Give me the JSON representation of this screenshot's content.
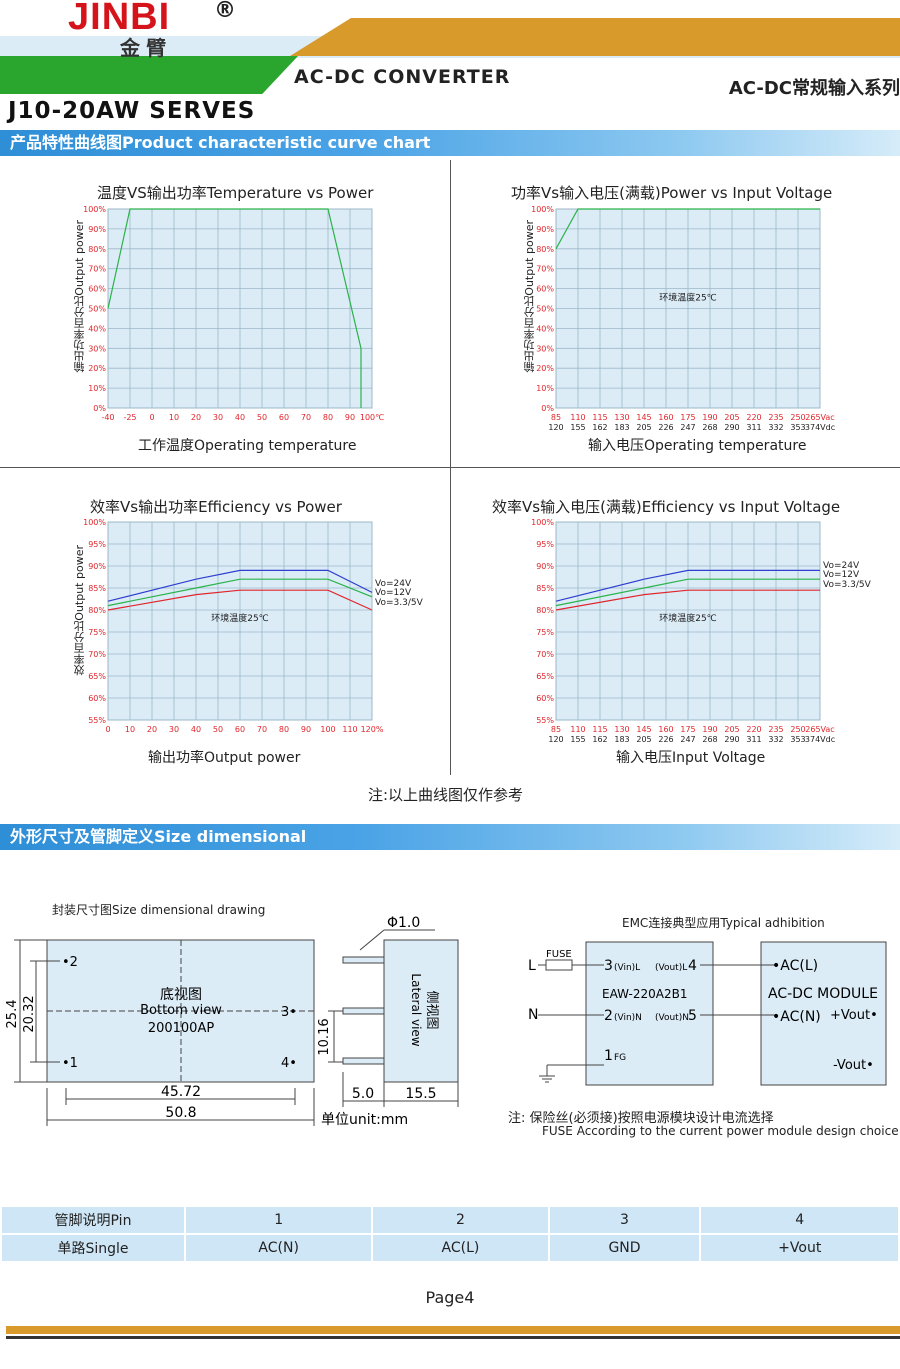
{
  "header": {
    "logo_text": "JINBI",
    "logo_reg": "®",
    "logo_cn": "金臂",
    "title": "AC-DC CONVERTER",
    "right_title": "AC-DC常规输入系列",
    "series": "J10-20AW SERVES",
    "colors": {
      "green": "#2aa52d",
      "gold": "#d79a2b",
      "lightblue": "#dcecf7"
    }
  },
  "section1": {
    "label": "产品特性曲线图Product characteristic curve chart"
  },
  "chart_data": [
    {
      "type": "line",
      "title": "温度VS输出功率Temperature vs Power",
      "xlabel": "工作温度Operating  temperature",
      "ylabel": "输出功率百分比Output power",
      "x_ticks": [
        "-40",
        "-25",
        "0",
        "10",
        "20",
        "30",
        "40",
        "50",
        "60",
        "70",
        "80",
        "90",
        "100℃"
      ],
      "y_ticks": [
        "0%",
        "10%",
        "20%",
        "30%",
        "40%",
        "50%",
        "60%",
        "70%",
        "80%",
        "90%",
        "100%"
      ],
      "xlim": [
        -40,
        100
      ],
      "ylim": [
        0,
        100
      ],
      "series": [
        {
          "color": "#2ab34a",
          "x": [
            "-40",
            "-25",
            "80",
            "95",
            "95"
          ],
          "y": [
            50,
            100,
            100,
            30,
            0
          ]
        }
      ],
      "grid": true
    },
    {
      "type": "line",
      "title": "功率Vs输入电压(满载)Power vs Input Voltage",
      "xlabel": "输入电压Operating  temperature",
      "ylabel": "输出功率百分比Output power",
      "annotation": "环境温度25℃",
      "x_ticks_top": [
        "85",
        "110",
        "115",
        "130",
        "145",
        "160",
        "175",
        "190",
        "205",
        "220",
        "235",
        "250",
        "265Vac"
      ],
      "x_ticks_bottom": [
        "120",
        "155",
        "162",
        "183",
        "205",
        "226",
        "247",
        "268",
        "290",
        "311",
        "332",
        "353",
        "374Vdc"
      ],
      "y_ticks": [
        "0%",
        "10%",
        "20%",
        "30%",
        "40%",
        "50%",
        "60%",
        "70%",
        "80%",
        "90%",
        "100%"
      ],
      "xlim": [
        85,
        265
      ],
      "ylim": [
        0,
        100
      ],
      "series": [
        {
          "color": "#2ab34a",
          "x": [
            85,
            110,
            265
          ],
          "y": [
            80,
            100,
            100
          ]
        }
      ],
      "grid": true
    },
    {
      "type": "line",
      "title": "效率Vs输出功率Efficiency vs Power",
      "xlabel": "输出功率Output power",
      "ylabel": "效率百分比Output power",
      "annotation": "环境温度25℃",
      "x_ticks": [
        "0",
        "10",
        "20",
        "30",
        "40",
        "50",
        "60",
        "70",
        "80",
        "90",
        "100",
        "110",
        "120%"
      ],
      "y_ticks": [
        "55%",
        "60%",
        "65%",
        "70%",
        "75%",
        "80%",
        "85%",
        "90%",
        "95%",
        "100%"
      ],
      "xlim": [
        0,
        120
      ],
      "ylim": [
        55,
        100
      ],
      "series": [
        {
          "name": "Vo=24V",
          "color": "#2f3fd0",
          "x": [
            0,
            40,
            60,
            100,
            120
          ],
          "y": [
            82,
            87,
            89,
            89,
            84
          ]
        },
        {
          "name": "Vo=12V",
          "color": "#2ab34a",
          "x": [
            0,
            40,
            60,
            100,
            120
          ],
          "y": [
            81,
            85,
            87,
            87,
            83
          ]
        },
        {
          "name": "Vo=3.3/5V",
          "color": "#e0262b",
          "x": [
            0,
            40,
            60,
            100,
            120
          ],
          "y": [
            80,
            83.5,
            84.5,
            84.5,
            80
          ]
        }
      ],
      "legend": "right",
      "grid": true
    },
    {
      "type": "line",
      "title": "效率Vs输入电压(满载)Efficiency vs Input Voltage",
      "xlabel": "输入电压Input Voltage",
      "annotation": "环境温度25℃",
      "x_ticks_top": [
        "85",
        "110",
        "115",
        "130",
        "145",
        "160",
        "175",
        "190",
        "205",
        "220",
        "235",
        "250",
        "265Vac"
      ],
      "x_ticks_bottom": [
        "120",
        "155",
        "162",
        "183",
        "205",
        "226",
        "247",
        "268",
        "290",
        "311",
        "332",
        "353",
        "374Vdc"
      ],
      "y_ticks": [
        "55%",
        "60%",
        "65%",
        "70%",
        "75%",
        "80%",
        "85%",
        "90%",
        "95%",
        "100%"
      ],
      "xlim": [
        85,
        265
      ],
      "ylim": [
        55,
        100
      ],
      "series": [
        {
          "name": "Vo=24V",
          "color": "#2f3fd0",
          "x": [
            85,
            145,
            175,
            265
          ],
          "y": [
            82,
            87,
            89,
            89
          ]
        },
        {
          "name": "Vo=12V",
          "color": "#2ab34a",
          "x": [
            85,
            145,
            175,
            265
          ],
          "y": [
            81,
            85,
            87,
            87
          ]
        },
        {
          "name": "Vo=3.3/5V",
          "color": "#e0262b",
          "x": [
            85,
            145,
            175,
            265
          ],
          "y": [
            80,
            83.5,
            84.5,
            84.5
          ]
        }
      ],
      "legend": "right",
      "grid": true
    }
  ],
  "curve_note": "注:以上曲线图仅作参考",
  "section2": {
    "label": "外形尺寸及管脚定义Size dimensional"
  },
  "dimensions": {
    "title": "封装尺寸图Size dimensional  drawing",
    "bottom_view_cn": "底视图",
    "bottom_view_en": "Bottom view",
    "part_no": "200100AP",
    "lateral_cn": "侧视图",
    "lateral_en": "Lateral view",
    "pin_diameter": "Φ1.0",
    "dim_25_4": "25.4",
    "dim_20_32": "20.32",
    "dim_10_16": "10.16",
    "dim_45_72": "45.72",
    "dim_50_8": "50.8",
    "dim_5_0": "5.0",
    "dim_15_5": "15.5",
    "unit": "单位unit:mm",
    "pin_labels": {
      "p1": "•1",
      "p2": "•2",
      "p3": "3•",
      "p4": "4•"
    }
  },
  "emc": {
    "title": "EMC连接典型应用Typical adhibition",
    "fuse": "FUSE",
    "L": "L",
    "N": "N",
    "pin3": "3",
    "pin3_sub": "(Vin)L",
    "pin4": "4",
    "pin4_sub": "(Vout)L",
    "pin2": "2",
    "pin2_sub": "(Vin)N",
    "pin5": "5",
    "pin5_sub": "(Vout)N",
    "pin1": "1",
    "pin1_sub": "FG",
    "model": "EAW-220A2B1",
    "acl": "•AC(L)",
    "module": "AC-DC MODULE",
    "acn": "•AC(N)",
    "vout_pos": "+Vout•",
    "vout_neg": "-Vout•",
    "note_cn": "注:  保险丝(必须接)按照电源模块设计电流选择",
    "note_en": "FUSE According to the current power module design choice"
  },
  "pin_table": {
    "header": [
      "管脚说明Pin",
      "1",
      "2",
      "3",
      "4"
    ],
    "row": [
      "单路Single",
      "AC(N)",
      "AC(L)",
      "GND",
      "+Vout"
    ]
  },
  "page": "Page4"
}
